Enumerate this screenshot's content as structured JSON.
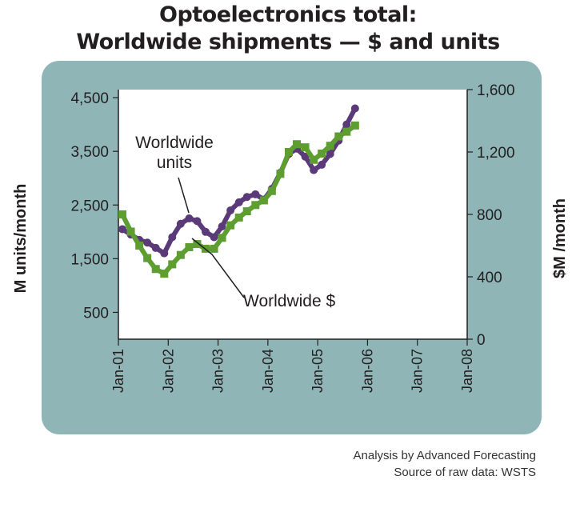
{
  "chart_data": {
    "type": "line",
    "title": "Optoelectronics total:",
    "subtitle": "Worldwide shipments — $ and units",
    "y_left": {
      "label": "M units/month",
      "ticks": [
        500,
        1500,
        2500,
        3500,
        4500
      ],
      "range": [
        0,
        4650
      ]
    },
    "y_right": {
      "label": "$M /month",
      "ticks": [
        0,
        400,
        800,
        1200,
        1600
      ],
      "range": [
        0,
        1600
      ]
    },
    "x_ticks": [
      "Jan-01",
      "Jan-02",
      "Jan-03",
      "Jan-04",
      "Jan-05",
      "Jan-06",
      "Jan-07",
      "Jan-08"
    ],
    "x_range": [
      2001.0,
      2008.0
    ],
    "series": [
      {
        "name": "Worldwide units",
        "axis": "left",
        "color": "#5b3a7a",
        "x": [
          2001.08,
          2001.25,
          2001.42,
          2001.58,
          2001.75,
          2001.92,
          2002.08,
          2002.25,
          2002.42,
          2002.58,
          2002.75,
          2002.92,
          2003.08,
          2003.25,
          2003.42,
          2003.58,
          2003.75,
          2003.92,
          2004.08,
          2004.25,
          2004.42,
          2004.58,
          2004.75,
          2004.92,
          2005.08,
          2005.25,
          2005.42,
          2005.58,
          2005.75
        ],
        "y": [
          2050,
          1950,
          1850,
          1800,
          1700,
          1600,
          1900,
          2150,
          2250,
          2200,
          2000,
          1900,
          2100,
          2400,
          2550,
          2650,
          2700,
          2600,
          2800,
          3100,
          3450,
          3550,
          3400,
          3150,
          3250,
          3450,
          3700,
          4000,
          4300
        ]
      },
      {
        "name": "Worldwide $",
        "axis": "right",
        "color": "#5e9e31",
        "x": [
          2001.08,
          2001.25,
          2001.42,
          2001.58,
          2001.75,
          2001.92,
          2002.08,
          2002.25,
          2002.42,
          2002.58,
          2002.75,
          2002.92,
          2003.08,
          2003.25,
          2003.42,
          2003.58,
          2003.75,
          2003.92,
          2004.08,
          2004.25,
          2004.42,
          2004.58,
          2004.75,
          2004.92,
          2005.08,
          2005.25,
          2005.42,
          2005.58,
          2005.75
        ],
        "y": [
          800,
          690,
          600,
          520,
          450,
          420,
          480,
          540,
          590,
          610,
          580,
          580,
          650,
          730,
          780,
          820,
          860,
          890,
          950,
          1060,
          1200,
          1250,
          1230,
          1150,
          1190,
          1240,
          1300,
          1330,
          1370
        ]
      }
    ],
    "annotations": [
      {
        "text": "Worldwide units",
        "lines": [
          "Worldwide",
          "units"
        ]
      },
      {
        "text": "Worldwide $"
      }
    ],
    "grid": false,
    "legend": "none"
  },
  "footer": {
    "line1": "Analysis by Advanced Forecasting",
    "line2": "Source of raw data: WSTS"
  }
}
